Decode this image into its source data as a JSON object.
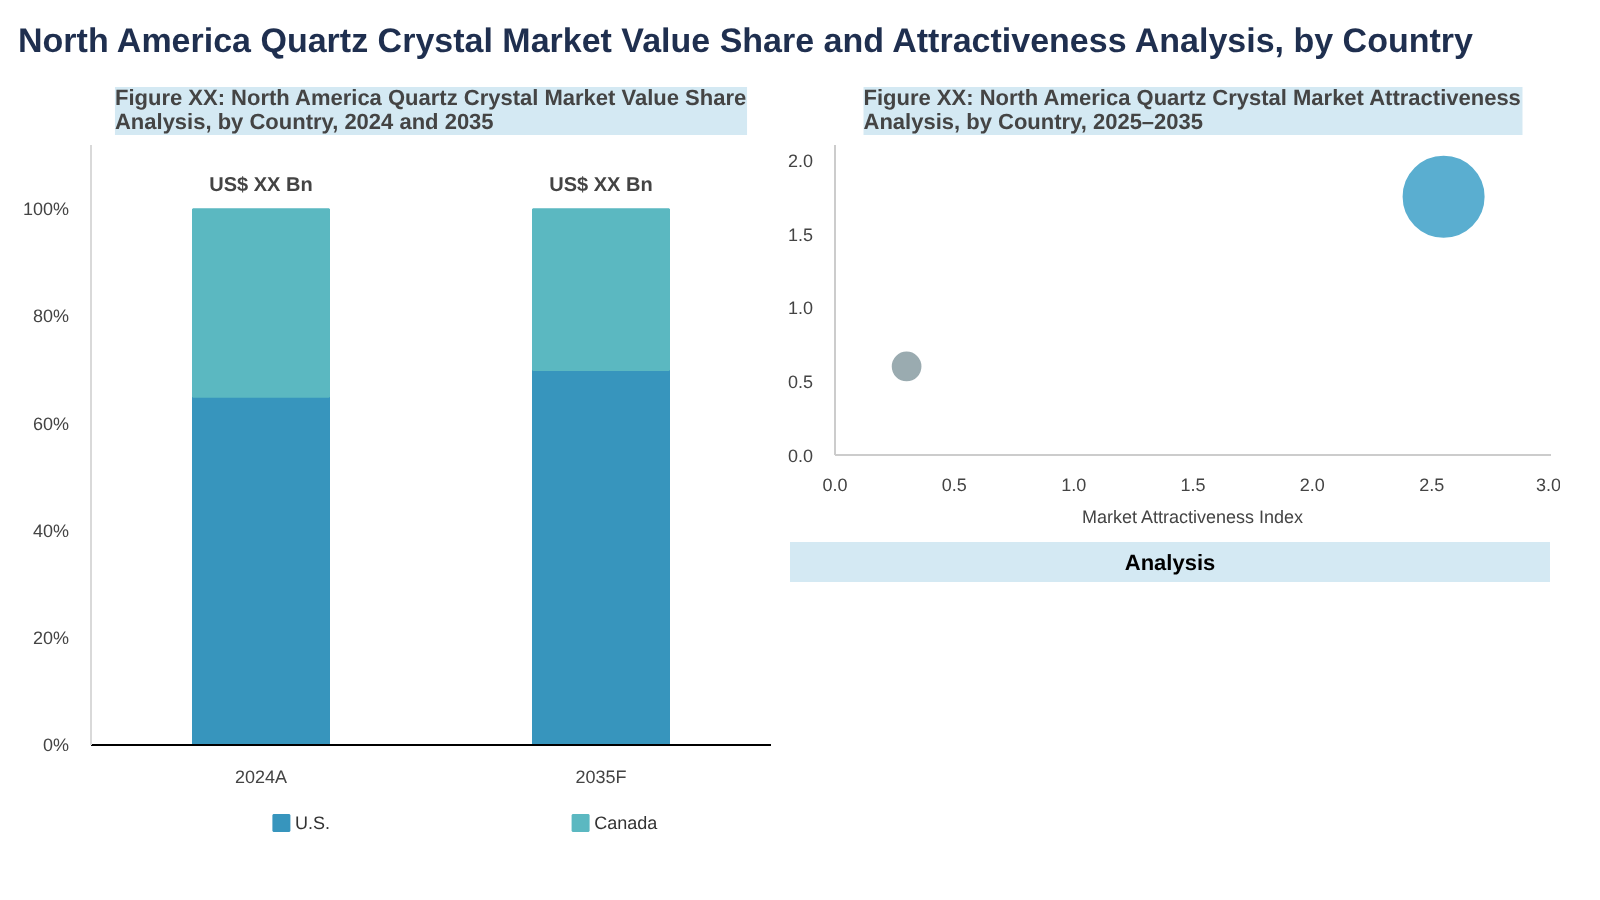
{
  "chart_data": [
    {
      "type": "other",
      "title": "North America Quartz Crystal Market Value Share and Attractiveness Analysis, by Country"
    },
    {
      "type": "bar",
      "title": "Figure XX: North America Quartz Crystal Market Value Share Analysis, by Country, 2024 and 2035",
      "categories": [
        "2024A",
        "2035F"
      ],
      "stacked": true,
      "series": [
        {
          "name": "U.S.",
          "color": "#3795bd",
          "values": [
            65,
            70
          ]
        },
        {
          "name": "Canada",
          "color": "#5bb8c1",
          "values": [
            35,
            30
          ]
        }
      ],
      "ylim": [
        0,
        112
      ],
      "yticks": [
        {
          "value": 0,
          "label": "0%"
        },
        {
          "value": 20,
          "label": "20%"
        },
        {
          "value": 40,
          "label": "40%"
        },
        {
          "value": 60,
          "label": "60%"
        },
        {
          "value": 80,
          "label": "80%"
        },
        {
          "value": 100,
          "label": "100%"
        }
      ],
      "annotations": [
        {
          "text": "US$ XX Bn",
          "x": "2024A",
          "y": 100
        },
        {
          "text": "US$ XX Bn",
          "x": "2035F",
          "y": 100
        }
      ],
      "legend": "bottom",
      "grid": false
    },
    {
      "type": "bubble",
      "title": "Figure XX: North America Quartz Crystal Market Attractiveness Analysis, by Country, 2025–2035",
      "xlabel": "Market Attractiveness Index",
      "series": [
        {
          "color": "#9aabb0",
          "x": [
            0.3
          ],
          "values": [
            0.6
          ],
          "sizes": [
            0.12
          ]
        },
        {
          "color": "#5aaed0",
          "x": [
            2.55
          ],
          "values": [
            1.75
          ],
          "sizes": [
            1
          ]
        }
      ],
      "xlim": [
        0,
        3
      ],
      "xticks": [
        {
          "value": 0,
          "label": "0.0"
        },
        {
          "value": 0.5,
          "label": "0.5"
        },
        {
          "value": 1,
          "label": "1.0"
        },
        {
          "value": 1.5,
          "label": "1.5"
        },
        {
          "value": 2,
          "label": "2.0"
        },
        {
          "value": 2.5,
          "label": "2.5"
        },
        {
          "value": 3,
          "label": "3.0"
        }
      ],
      "ylim": [
        0,
        2.1
      ],
      "yticks": [
        {
          "value": 0,
          "label": "0.0"
        },
        {
          "value": 0.5,
          "label": "0.5"
        },
        {
          "value": 1,
          "label": "1.0"
        },
        {
          "value": 1.5,
          "label": "1.5"
        },
        {
          "value": 2,
          "label": "2.0"
        }
      ],
      "grid": false,
      "legend": false
    },
    {
      "type": "other",
      "title": "Analysis"
    }
  ]
}
